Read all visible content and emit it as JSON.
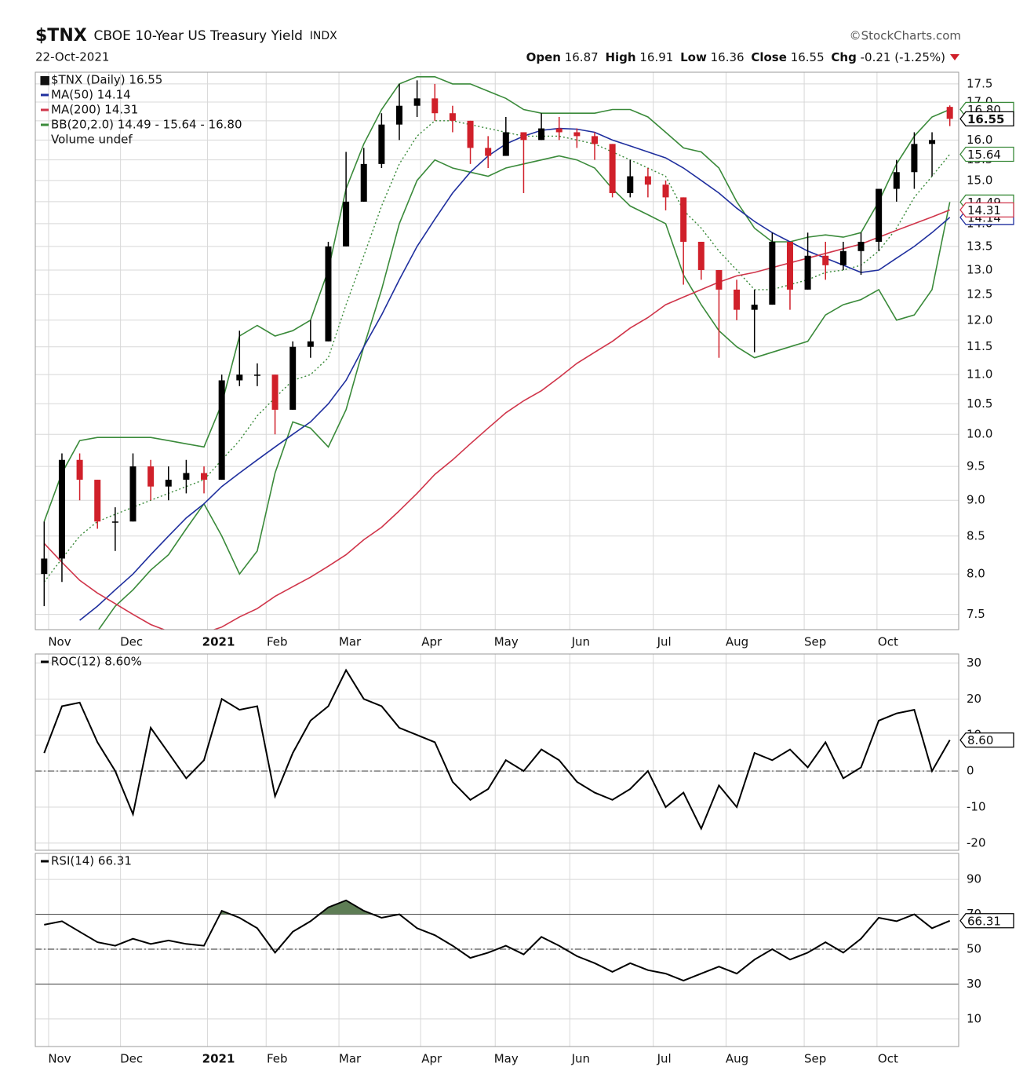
{
  "chart_data": [
    {
      "type": "candlestick",
      "title": "$TNX",
      "subtitle": "CBOE 10-Year US Treasury Yield",
      "exchange": "INDX",
      "source": "©StockCharts.com",
      "date": "22-Oct-2021",
      "quote": [
        {
          "label": "Open",
          "value": 16.87
        },
        {
          "label": "High",
          "value": 16.91
        },
        {
          "label": "Low",
          "value": 16.36
        },
        {
          "label": "Close",
          "value": 16.55
        },
        {
          "label": "Chg",
          "value": "-0.21 (-1.25%)"
        }
      ],
      "series_label": "$TNX (Daily) 16.55",
      "volume_label": "Volume undef",
      "log": true,
      "grid": true,
      "up_color": "#000000",
      "down_color": "#d0202a",
      "x": [
        0.5,
        1.5,
        2.5,
        3.5,
        4.5,
        5.5,
        6.5,
        7.5,
        8.5,
        9.5,
        10.5,
        11.5,
        12.5,
        13.5,
        14.5,
        15.5,
        16.5,
        17.5,
        18.5,
        19.5,
        20.5,
        21.5,
        22.5,
        23.5,
        24.5,
        25.5,
        26.5,
        27.5,
        28.5,
        29.5,
        30.5,
        31.5,
        32.5,
        33.5,
        34.5,
        35.5,
        36.5,
        37.5,
        38.5,
        39.5,
        40.5,
        41.5,
        42.5,
        43.5,
        44.5,
        45.5,
        46.5,
        47.5,
        48.5,
        49.5,
        50.5,
        51.5
      ],
      "xlim": [
        0,
        52
      ],
      "xticks": [
        {
          "value": 0.75,
          "label": "Nov"
        },
        {
          "value": 4.8,
          "label": "Dec"
        },
        {
          "value": 9.7,
          "label": "2021"
        },
        {
          "value": 13.0,
          "label": "Feb"
        },
        {
          "value": 17.1,
          "label": "Mar"
        },
        {
          "value": 21.7,
          "label": "Apr"
        },
        {
          "value": 25.9,
          "label": "May"
        },
        {
          "value": 30.1,
          "label": "Jun"
        },
        {
          "value": 34.8,
          "label": "Jul"
        },
        {
          "value": 38.9,
          "label": "Aug"
        },
        {
          "value": 43.3,
          "label": "Sep"
        },
        {
          "value": 47.4,
          "label": "Oct"
        }
      ],
      "ylim": [
        7.32,
        17.83
      ],
      "yticks": [
        7.5,
        {
          "value": 8,
          "label": "8.0"
        },
        8.5,
        {
          "value": 9,
          "label": "9.0"
        },
        9.5,
        {
          "value": 10,
          "label": "10.0"
        },
        10.5,
        {
          "value": 11,
          "label": "11.0"
        },
        11.5,
        {
          "value": 12,
          "label": "12.0"
        },
        12.5,
        {
          "value": 13,
          "label": "13.0"
        },
        13.5,
        {
          "value": 14,
          "label": "14.0"
        },
        14.5,
        {
          "value": 15,
          "label": "15.0"
        },
        15.5,
        {
          "value": 16,
          "label": "16.0"
        },
        16.5,
        {
          "value": 17,
          "label": "17.0"
        },
        17.5
      ],
      "open": [
        8.0,
        8.2,
        9.6,
        9.3,
        8.7,
        8.7,
        9.5,
        9.2,
        9.3,
        9.4,
        9.3,
        10.9,
        11.0,
        11.0,
        10.4,
        11.5,
        11.6,
        13.5,
        14.5,
        15.4,
        16.4,
        16.9,
        17.1,
        16.7,
        16.5,
        15.8,
        15.6,
        16.2,
        16.0,
        16.3,
        16.2,
        16.1,
        15.9,
        14.7,
        15.1,
        14.9,
        14.6,
        13.6,
        13.0,
        12.6,
        12.2,
        12.3,
        13.6,
        12.6,
        13.3,
        13.1,
        13.4,
        13.6,
        14.8,
        15.2,
        15.9,
        16.87
      ],
      "high": [
        8.7,
        9.7,
        9.7,
        9.3,
        8.9,
        9.7,
        9.6,
        9.5,
        9.6,
        9.5,
        11.0,
        11.8,
        11.2,
        11.0,
        11.6,
        12.0,
        13.6,
        15.7,
        15.8,
        16.7,
        17.5,
        17.6,
        17.5,
        16.9,
        16.5,
        16.1,
        16.6,
        16.2,
        16.7,
        16.6,
        16.3,
        16.2,
        15.9,
        15.5,
        15.3,
        15.0,
        14.6,
        13.6,
        13.0,
        12.8,
        12.6,
        13.8,
        13.6,
        13.8,
        13.6,
        13.6,
        13.8,
        14.8,
        15.5,
        16.2,
        16.2,
        16.91
      ],
      "low": [
        7.6,
        7.9,
        9.0,
        8.6,
        8.3,
        8.7,
        9.0,
        9.0,
        9.1,
        9.1,
        9.3,
        10.8,
        10.8,
        10.0,
        10.4,
        11.3,
        11.6,
        13.5,
        14.5,
        15.3,
        16.0,
        16.6,
        16.5,
        16.2,
        15.4,
        15.3,
        15.6,
        14.7,
        16.0,
        16.0,
        15.8,
        15.5,
        14.6,
        14.6,
        14.6,
        14.3,
        12.7,
        12.8,
        11.3,
        12.0,
        11.4,
        12.3,
        12.2,
        12.6,
        12.8,
        13.0,
        12.9,
        13.4,
        14.5,
        14.8,
        15.1,
        16.36
      ],
      "close": [
        8.2,
        9.6,
        9.3,
        8.7,
        8.7,
        9.5,
        9.2,
        9.3,
        9.4,
        9.3,
        10.9,
        11.0,
        11.0,
        10.4,
        11.5,
        11.6,
        13.5,
        14.5,
        15.4,
        16.4,
        16.9,
        17.1,
        16.7,
        16.5,
        15.8,
        15.6,
        16.2,
        16.0,
        16.3,
        16.2,
        16.1,
        15.9,
        14.7,
        15.1,
        14.9,
        14.6,
        13.6,
        13.0,
        12.6,
        12.2,
        12.3,
        13.6,
        12.6,
        13.3,
        13.1,
        13.4,
        13.6,
        14.8,
        15.2,
        15.9,
        16.0,
        16.55
      ],
      "series": [
        {
          "name": "MA(50) 14.14",
          "color": "#1f2f9e",
          "values": [
            null,
            null,
            7.43,
            7.6,
            7.8,
            8.0,
            8.25,
            8.5,
            8.75,
            8.95,
            9.2,
            9.4,
            9.6,
            9.8,
            10.0,
            10.2,
            10.5,
            10.9,
            11.5,
            12.1,
            12.8,
            13.5,
            14.1,
            14.7,
            15.2,
            15.6,
            15.9,
            16.1,
            16.25,
            16.3,
            16.28,
            16.2,
            16.0,
            15.85,
            15.7,
            15.55,
            15.3,
            15.0,
            14.7,
            14.35,
            14.05,
            13.8,
            13.6,
            13.4,
            13.25,
            13.1,
            12.95,
            13.0,
            13.25,
            13.5,
            13.8,
            14.14
          ]
        },
        {
          "name": "MA(200) 14.31",
          "color": "#d0354a",
          "values": [
            8.4,
            8.15,
            7.92,
            7.76,
            7.63,
            7.5,
            7.38,
            7.3,
            7.28,
            7.28,
            7.35,
            7.47,
            7.57,
            7.72,
            7.84,
            7.96,
            8.1,
            8.25,
            8.45,
            8.62,
            8.85,
            9.1,
            9.38,
            9.6,
            9.85,
            10.1,
            10.35,
            10.55,
            10.72,
            10.95,
            11.2,
            11.4,
            11.6,
            11.85,
            12.05,
            12.3,
            12.45,
            12.6,
            12.75,
            12.88,
            12.95,
            13.05,
            13.15,
            13.25,
            13.35,
            13.45,
            13.55,
            13.7,
            13.85,
            14.0,
            14.15,
            14.31
          ]
        }
      ],
      "bands": {
        "name": "BB(20,2.0) 14.49 - 15.64 - 16.80",
        "color": "#3a8a3a",
        "upper_tag": "16.80",
        "upper": [
          8.7,
          9.4,
          9.9,
          9.95,
          9.95,
          9.95,
          9.95,
          9.9,
          9.85,
          9.8,
          10.5,
          11.7,
          11.9,
          11.7,
          11.8,
          12.0,
          13.0,
          14.8,
          15.9,
          16.8,
          17.5,
          17.7,
          17.7,
          17.5,
          17.5,
          17.3,
          17.1,
          16.8,
          16.7,
          16.7,
          16.7,
          16.7,
          16.8,
          16.8,
          16.6,
          16.2,
          15.8,
          15.7,
          15.3,
          14.5,
          13.9,
          13.6,
          13.6,
          13.7,
          13.75,
          13.7,
          13.8,
          14.5,
          15.4,
          16.1,
          16.6,
          16.8
        ],
        "middle": [
          7.9,
          8.2,
          8.5,
          8.7,
          8.8,
          8.9,
          9.0,
          9.1,
          9.2,
          9.3,
          9.6,
          9.9,
          10.3,
          10.6,
          10.9,
          11.0,
          11.3,
          12.3,
          13.3,
          14.4,
          15.4,
          16.1,
          16.5,
          16.5,
          16.4,
          16.3,
          16.2,
          16.1,
          16.1,
          16.1,
          16.0,
          15.9,
          15.7,
          15.5,
          15.3,
          15.1,
          14.3,
          13.9,
          13.4,
          13.0,
          12.6,
          12.6,
          12.7,
          12.8,
          12.95,
          13.0,
          13.1,
          13.4,
          13.9,
          14.6,
          15.1,
          15.64
        ],
        "lower": [
          7.2,
          7.3,
          7.3,
          7.3,
          7.6,
          7.8,
          8.05,
          8.25,
          8.6,
          8.95,
          8.5,
          8.0,
          8.3,
          9.4,
          10.2,
          10.1,
          9.8,
          10.4,
          11.5,
          12.6,
          14.0,
          15.0,
          15.5,
          15.3,
          15.2,
          15.1,
          15.3,
          15.4,
          15.5,
          15.6,
          15.5,
          15.3,
          14.8,
          14.4,
          14.2,
          14.0,
          12.9,
          12.3,
          11.8,
          11.5,
          11.3,
          11.4,
          11.5,
          11.6,
          12.1,
          12.3,
          12.4,
          12.6,
          12.0,
          12.1,
          12.6,
          14.49
        ]
      }
    },
    {
      "type": "line",
      "grid": true,
      "ylim": [
        -22,
        32.5
      ],
      "yticks": [
        -20,
        -10,
        0,
        10,
        20,
        30
      ],
      "reference_lines": [
        {
          "value": 0,
          "style": "dashdot"
        }
      ],
      "series": [
        {
          "name": "ROC(12) 8.60%",
          "color": "#000000",
          "tag": "8.60",
          "values": [
            5,
            18,
            19,
            8,
            0,
            -12,
            12,
            5,
            -2,
            3,
            20,
            17,
            18,
            -7,
            5,
            14,
            18,
            28,
            20,
            18,
            12,
            10,
            8,
            -3,
            -8,
            -5,
            3,
            0,
            6,
            3,
            -3,
            -6,
            -8,
            -5,
            0,
            -10,
            -6,
            -16,
            -4,
            -10,
            5,
            3,
            6,
            1,
            8,
            -2,
            1,
            14,
            16,
            17,
            0,
            8.6
          ]
        }
      ]
    },
    {
      "type": "line",
      "grid": true,
      "ylim": [
        -5.8,
        104.9
      ],
      "yticks": [
        10,
        30,
        50,
        70,
        90
      ],
      "reference_lines": [
        {
          "value": 70,
          "style": "solid"
        },
        {
          "value": 50,
          "style": "dashdot"
        },
        {
          "value": 30,
          "style": "solid"
        }
      ],
      "fill_above": 70,
      "fill_color": "#5e7d55",
      "xticks": [
        {
          "value": 0.75,
          "label": "Nov"
        },
        {
          "value": 4.8,
          "label": "Dec"
        },
        {
          "value": 9.7,
          "label": "2021"
        },
        {
          "value": 13.0,
          "label": "Feb"
        },
        {
          "value": 17.1,
          "label": "Mar"
        },
        {
          "value": 21.7,
          "label": "Apr"
        },
        {
          "value": 25.9,
          "label": "May"
        },
        {
          "value": 30.1,
          "label": "Jun"
        },
        {
          "value": 34.8,
          "label": "Jul"
        },
        {
          "value": 38.9,
          "label": "Aug"
        },
        {
          "value": 43.3,
          "label": "Sep"
        },
        {
          "value": 47.4,
          "label": "Oct"
        }
      ],
      "series": [
        {
          "name": "RSI(14) 66.31",
          "color": "#000000",
          "values": [
            64,
            66,
            60,
            54,
            52,
            56,
            53,
            55,
            53,
            52,
            72,
            68,
            62,
            48,
            60,
            66,
            74,
            78,
            72,
            68,
            70,
            62,
            58,
            52,
            45,
            48,
            52,
            47,
            57,
            52,
            46,
            42,
            37,
            42,
            38,
            36,
            32,
            36,
            40,
            36,
            44,
            50,
            44,
            48,
            54,
            48,
            56,
            68,
            66,
            70,
            62,
            66.31
          ]
        }
      ]
    }
  ]
}
